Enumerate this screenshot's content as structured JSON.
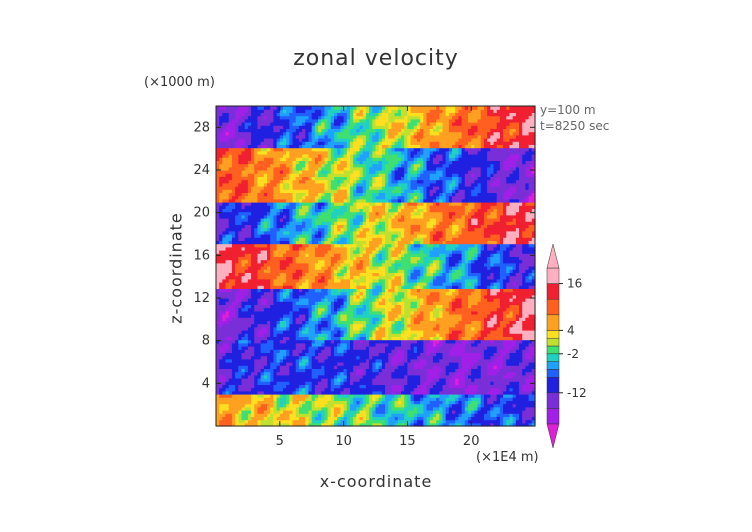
{
  "chart_data": {
    "type": "heatmap",
    "title": "zonal velocity",
    "xlabel": "x-coordinate",
    "ylabel": "z-coordinate",
    "x_unit_label": "(×1E4 m)",
    "y_unit_label": "(×1000 m)",
    "info_lines": [
      "y=100  m",
      "t=8250 sec"
    ],
    "xlim": [
      0,
      25
    ],
    "ylim": [
      0,
      30
    ],
    "x_ticks": [
      5,
      10,
      15,
      20
    ],
    "y_ticks": [
      4,
      8,
      12,
      16,
      20,
      24,
      28
    ],
    "colorbar": {
      "levels": [
        -20,
        -16,
        -12,
        -8,
        -6,
        -4,
        -2,
        0,
        2,
        4,
        8,
        12,
        16,
        20
      ],
      "tick_labels": [
        "16",
        "4",
        "-2",
        "-12"
      ],
      "tick_values": [
        16,
        4,
        -2,
        -12
      ],
      "colors": [
        "#e020d8",
        "#a020e8",
        "#7a2ed8",
        "#2020e0",
        "#2060ff",
        "#20a0ff",
        "#20d0c0",
        "#40e070",
        "#c0e030",
        "#ffe020",
        "#ffa020",
        "#ff6020",
        "#f02030",
        "#ffb0c0",
        "#ffb0c0"
      ],
      "extend": "both"
    },
    "bands": [
      {
        "z": [
          0,
          3
        ],
        "x_left": "positive ~4",
        "x_right": "negative ~-12"
      },
      {
        "z": [
          3,
          8
        ],
        "x_left": "negative ~-12",
        "x_right": "negative ~-12"
      },
      {
        "z": [
          8,
          13
        ],
        "x_left": "negative ~-16",
        "x_right": "positive ~16"
      },
      {
        "z": [
          13,
          17
        ],
        "x_left": "positive ~16",
        "x_right": "negative ~-12"
      },
      {
        "z": [
          17,
          21
        ],
        "x_left": "negative ~-12",
        "x_right": "positive ~16"
      },
      {
        "z": [
          21,
          26
        ],
        "x_left": "positive ~12",
        "x_right": "negative ~-16"
      },
      {
        "z": [
          26,
          30
        ],
        "x_left": "negative ~-16",
        "x_right": "positive ~16"
      }
    ]
  }
}
